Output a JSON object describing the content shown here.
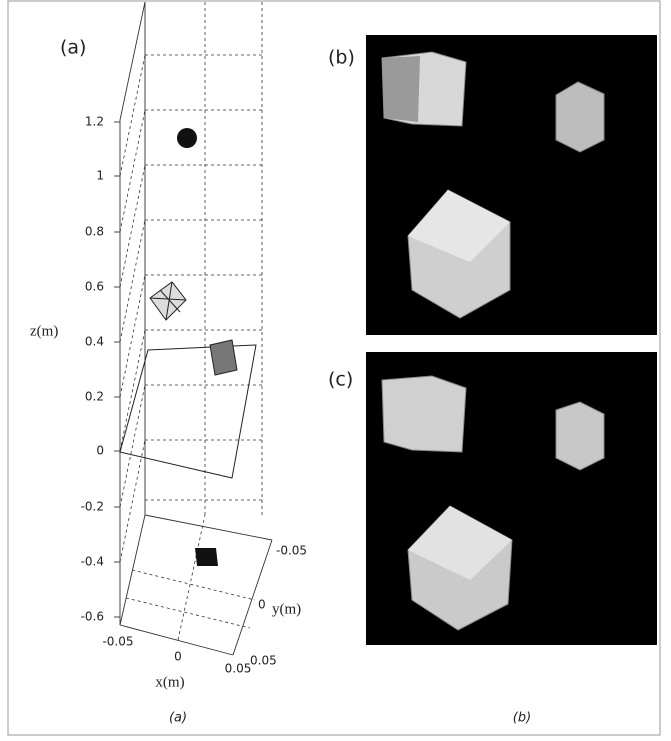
{
  "panel_a": {
    "label": "(a)",
    "z_ticks": [
      "1.2",
      "1",
      "0.8",
      "0.6",
      "0.4",
      "0.2",
      "0",
      "-0.2",
      "-0.4",
      "-0.6"
    ],
    "z_label": "z(m)",
    "x_label": "x(m)",
    "y_label": "y(m)",
    "x_ticks": [
      "-0.05",
      "0",
      "0.05"
    ],
    "y_ticks": [
      "-0.05",
      "0",
      "0.05"
    ]
  },
  "panel_b": {
    "label": "(b)"
  },
  "panel_c": {
    "label": "(c)"
  },
  "captions": [
    "(a)",
    "(b)"
  ]
}
